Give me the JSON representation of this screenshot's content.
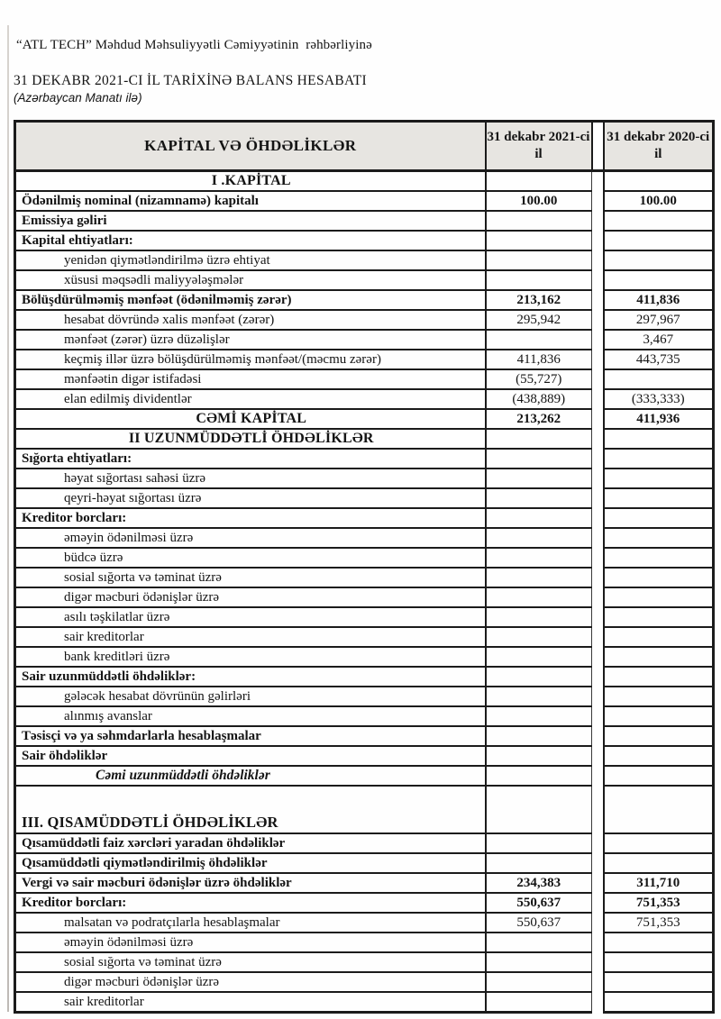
{
  "page": {
    "addressee": "“ATL TECH” Məhdud Məhsuliyyətli Cəmiyyətinin  rəhbərliyinə",
    "title": "31 DEKABR 2021-CI İL TARİXİNƏ BALANS HESABATI",
    "currency_note": "(Azərbaycan Manatı ilə)"
  },
  "colors": {
    "border": "#1b1b1b",
    "header_bg": "#e7e5e1",
    "text": "#141414"
  },
  "table": {
    "columns": [
      "KAPİTAL VƏ ÖHDƏLİKLƏR",
      "31 dekabr 2021-ci il",
      "31 dekabr 2020-ci il"
    ],
    "rows": [
      {
        "label": "I .KAPİTAL",
        "v1": "",
        "v2": "",
        "cls": "sec-center"
      },
      {
        "label": "Ödənilmiş nominal (nizamnamə) kapitalı",
        "v1": "100.00",
        "v2": "100.00",
        "cls": "vb"
      },
      {
        "label": "Emissiya gəliri",
        "v1": "",
        "v2": "",
        "cls": ""
      },
      {
        "label": "Kapital ehtiyatları:",
        "v1": "",
        "v2": "",
        "cls": ""
      },
      {
        "label": "yenidən qiymətləndirilmə üzrə ehtiyat",
        "v1": "",
        "v2": "",
        "cls": "sub"
      },
      {
        "label": "xüsusi məqsədli maliyyələşmələr",
        "v1": "",
        "v2": "",
        "cls": "sub"
      },
      {
        "label": "Bölüşdürülməmiş mənfəət (ödənilməmiş zərər)",
        "v1": "213,162",
        "v2": "411,836",
        "cls": "vb"
      },
      {
        "label": "hesabat dövründə xalis mənfəət (zərər)",
        "v1": "295,942",
        "v2": "297,967",
        "cls": "sub"
      },
      {
        "label": "mənfəət (zərər) üzrə düzəlişlər",
        "v1": "",
        "v2": "3,467",
        "cls": "sub"
      },
      {
        "label": "keçmiş illər üzrə bölüşdürülməmiş mənfəət/(məcmu zərər)",
        "v1": "411,836",
        "v2": "443,735",
        "cls": "sub"
      },
      {
        "label": "mənfəətin digər istifadəsi",
        "v1": "(55,727)",
        "v2": "",
        "cls": "sub"
      },
      {
        "label": "elan edilmiş dividentlər",
        "v1": "(438,889)",
        "v2": "(333,333)",
        "cls": "sub"
      },
      {
        "label": "CƏMİ KAPİTAL",
        "v1": "213,262",
        "v2": "411,936",
        "cls": "sec-center vb"
      },
      {
        "label": "II UZUNMÜDDƏTLİ ÖHDƏLİKLƏR",
        "v1": "",
        "v2": "",
        "cls": "sec-center"
      },
      {
        "label": "Sığorta ehtiyatları:",
        "v1": "",
        "v2": "",
        "cls": ""
      },
      {
        "label": "həyat sığortası sahəsi üzrə",
        "v1": "",
        "v2": "",
        "cls": "sub"
      },
      {
        "label": "qeyri-həyat sığortası üzrə",
        "v1": "",
        "v2": "",
        "cls": "sub"
      },
      {
        "label": "Kreditor borcları:",
        "v1": "",
        "v2": "",
        "cls": ""
      },
      {
        "label": "əməyin ödənilməsi üzrə",
        "v1": "",
        "v2": "",
        "cls": "sub"
      },
      {
        "label": "büdcə üzrə",
        "v1": "",
        "v2": "",
        "cls": "sub"
      },
      {
        "label": "sosial sığorta və təminat üzrə",
        "v1": "",
        "v2": "",
        "cls": "sub"
      },
      {
        "label": "digər məcburi ödənişlər üzrə",
        "v1": "",
        "v2": "",
        "cls": "sub"
      },
      {
        "label": "asılı təşkilatlar üzrə",
        "v1": "",
        "v2": "",
        "cls": "sub"
      },
      {
        "label": "sair kreditorlar",
        "v1": "",
        "v2": "",
        "cls": "sub"
      },
      {
        "label": "bank kreditləri üzrə",
        "v1": "",
        "v2": "",
        "cls": "sub"
      },
      {
        "label": "Sair uzunmüddətli öhdəliklər:",
        "v1": "",
        "v2": "",
        "cls": ""
      },
      {
        "label": "gələcək hesabat dövrünün gəlirləri",
        "v1": "",
        "v2": "",
        "cls": "sub"
      },
      {
        "label": "alınmış avanslar",
        "v1": "",
        "v2": "",
        "cls": "sub"
      },
      {
        "label": "Təsisçi və ya səhmdarlarla hesablaşmalar",
        "v1": "",
        "v2": "",
        "cls": ""
      },
      {
        "label": "Sair öhdəliklər",
        "v1": "",
        "v2": "",
        "cls": ""
      },
      {
        "label": "Cəmi uzunmüddətli öhdəliklər",
        "v1": "",
        "v2": "",
        "cls": "total-italic"
      },
      {
        "label": "III. QISAMÜDDƏTLİ ÖHDƏLİKLƏR",
        "v1": "",
        "v2": "",
        "cls": "sec3"
      },
      {
        "label": "Qısamüddətli faiz xərcləri yaradan öhdəliklər",
        "v1": "",
        "v2": "",
        "cls": ""
      },
      {
        "label": "Qısamüddətli qiymətləndirilmiş öhdəliklər",
        "v1": "",
        "v2": "",
        "cls": ""
      },
      {
        "label": "Vergi və sair məcburi ödənişlər üzrə öhdəliklər",
        "v1": "234,383",
        "v2": "311,710",
        "cls": "vb"
      },
      {
        "label": "Kreditor borcları:",
        "v1": "550,637",
        "v2": "751,353",
        "cls": "vb"
      },
      {
        "label": "malsatan və podratçılarla hesablaşmalar",
        "v1": "550,637",
        "v2": "751,353",
        "cls": "sub"
      },
      {
        "label": "əməyin ödənilməsi üzrə",
        "v1": "",
        "v2": "",
        "cls": "sub"
      },
      {
        "label": "sosial sığorta və təminat üzrə",
        "v1": "",
        "v2": "",
        "cls": "sub"
      },
      {
        "label": "digər məcburi ödənişlər üzrə",
        "v1": "",
        "v2": "",
        "cls": "sub"
      },
      {
        "label": "sair kreditorlar",
        "v1": "",
        "v2": "",
        "cls": "sub"
      }
    ]
  }
}
